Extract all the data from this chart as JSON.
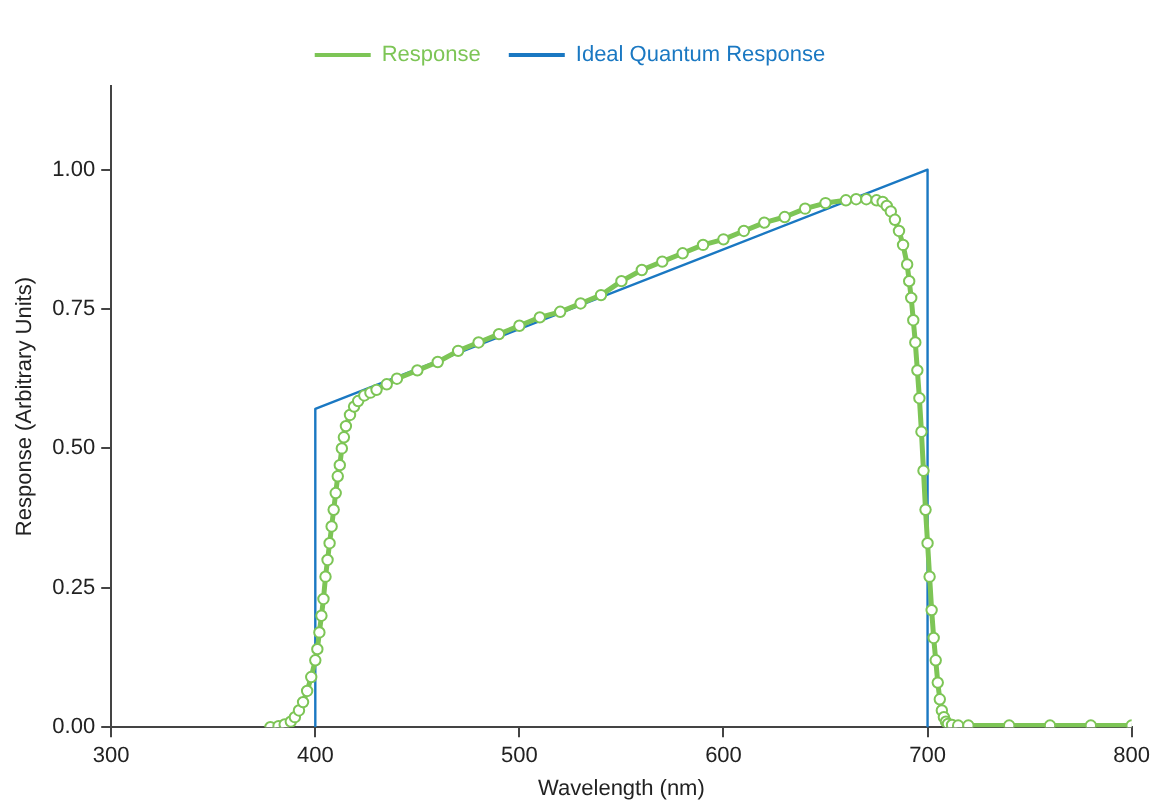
{
  "chart_data": {
    "type": "line",
    "xlabel": "Wavelength (nm)",
    "ylabel": "Response (Arbitrary Units)",
    "xlim": [
      300,
      800
    ],
    "xticks": [
      300,
      400,
      500,
      600,
      700,
      800
    ],
    "ylim": [
      0,
      1.15
    ],
    "yticks": [
      {
        "value": 0,
        "label": "0.00"
      },
      {
        "value": 0.25,
        "label": "0.25"
      },
      {
        "value": 0.5,
        "label": "0.50"
      },
      {
        "value": 0.75,
        "label": "0.75"
      },
      {
        "value": 1,
        "label": "1.00"
      }
    ],
    "grid": false,
    "legend": "top",
    "series": [
      {
        "name": "Response",
        "color": "#7dc556",
        "marker": "circle",
        "x": [
          378,
          382,
          385,
          388,
          390,
          392,
          394,
          396,
          398,
          400,
          401,
          402,
          403,
          404,
          405,
          406,
          407,
          408,
          409,
          410,
          411,
          412,
          413,
          414,
          415,
          417,
          419,
          421,
          424,
          427,
          430,
          435,
          440,
          450,
          460,
          470,
          480,
          490,
          500,
          510,
          520,
          530,
          540,
          550,
          560,
          570,
          580,
          590,
          600,
          610,
          620,
          630,
          640,
          650,
          660,
          665,
          670,
          675,
          678,
          680,
          682,
          684,
          686,
          688,
          690,
          691,
          692,
          693,
          694,
          695,
          696,
          697,
          698,
          699,
          700,
          701,
          702,
          703,
          704,
          705,
          706,
          707,
          708,
          709,
          710,
          712,
          715,
          720,
          740,
          760,
          780,
          800
        ],
        "values": [
          0,
          0.002,
          0.005,
          0.01,
          0.018,
          0.03,
          0.045,
          0.065,
          0.09,
          0.12,
          0.14,
          0.17,
          0.2,
          0.23,
          0.27,
          0.3,
          0.33,
          0.36,
          0.39,
          0.42,
          0.45,
          0.47,
          0.5,
          0.52,
          0.54,
          0.56,
          0.575,
          0.585,
          0.595,
          0.6,
          0.605,
          0.615,
          0.625,
          0.64,
          0.655,
          0.675,
          0.69,
          0.705,
          0.72,
          0.735,
          0.745,
          0.76,
          0.775,
          0.8,
          0.82,
          0.835,
          0.85,
          0.865,
          0.875,
          0.89,
          0.905,
          0.915,
          0.93,
          0.94,
          0.945,
          0.947,
          0.947,
          0.945,
          0.942,
          0.935,
          0.925,
          0.91,
          0.89,
          0.865,
          0.83,
          0.8,
          0.77,
          0.73,
          0.69,
          0.64,
          0.59,
          0.53,
          0.46,
          0.39,
          0.33,
          0.27,
          0.21,
          0.16,
          0.12,
          0.08,
          0.05,
          0.03,
          0.018,
          0.01,
          0.006,
          0.004,
          0.003,
          0.003,
          0.003,
          0.003,
          0.003,
          0.003
        ]
      },
      {
        "name": "Ideal Quantum Response",
        "color": "#1a78c2",
        "marker": "none",
        "x": [
          400,
          400,
          700,
          700
        ],
        "values": [
          0,
          0.571,
          1,
          0
        ]
      }
    ]
  }
}
